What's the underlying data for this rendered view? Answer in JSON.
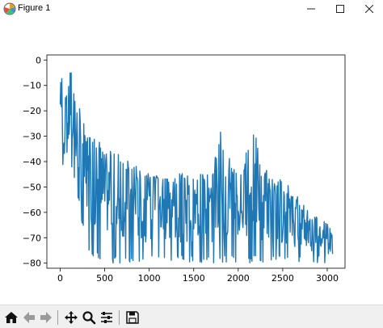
{
  "window": {
    "title": "Figure 1",
    "minimize_icon": "minimize-icon",
    "maximize_icon": "maximize-icon",
    "close_icon": "close-icon"
  },
  "toolbar": {
    "buttons": [
      {
        "name": "home",
        "icon": "home-icon"
      },
      {
        "name": "back",
        "icon": "arrow-left-icon"
      },
      {
        "name": "forward",
        "icon": "arrow-right-icon"
      },
      {
        "name": "pan",
        "icon": "move-icon"
      },
      {
        "name": "zoom",
        "icon": "magnifier-icon"
      },
      {
        "name": "configure",
        "icon": "sliders-icon"
      },
      {
        "name": "save",
        "icon": "floppy-disk-icon"
      }
    ]
  },
  "chart_data": {
    "type": "line",
    "title": "",
    "xlabel": "",
    "ylabel": "",
    "xlim": [
      -150,
      3200
    ],
    "ylim": [
      -82,
      2
    ],
    "xticks": [
      0,
      500,
      1000,
      1500,
      2000,
      2500,
      3000
    ],
    "yticks": [
      0,
      -10,
      -20,
      -30,
      -40,
      -50,
      -60,
      -70,
      -80
    ],
    "grid": false,
    "series": [
      {
        "color": "#1f77b4",
        "x_start": 0,
        "x_end": 3060,
        "envelope": {
          "x": [
            0,
            20,
            60,
            120,
            160,
            200,
            300,
            500,
            800,
            1000,
            1300,
            1500,
            1700,
            1800,
            1850,
            1900,
            2000,
            2200,
            2250,
            2300,
            2500,
            2700,
            2900,
            3060
          ],
          "upper": [
            -10,
            -3,
            -15,
            0,
            -15,
            -12,
            -30,
            -33,
            -40,
            -45,
            -45,
            -44,
            -45,
            -27,
            -40,
            -38,
            -45,
            -26,
            -40,
            -42,
            -47,
            -55,
            -62,
            -65
          ],
          "lower": [
            -30,
            -40,
            -55,
            -40,
            -60,
            -55,
            -77,
            -80,
            -80,
            -80,
            -80,
            -80,
            -80,
            -80,
            -80,
            -80,
            -80,
            -80,
            -80,
            -80,
            -80,
            -80,
            -80,
            -80
          ]
        }
      }
    ]
  }
}
